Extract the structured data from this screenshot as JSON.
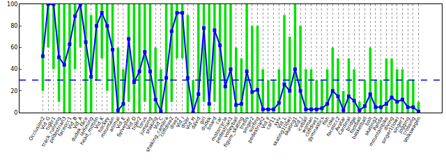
{
  "chart_data": {
    "type": "line",
    "categories": [
      "Occlusion2",
      "Vid_G",
      "tiger1",
      "track_running",
      "pedestrian3",
      "faceocc1",
      "Vid_B",
      "Vid_A",
      "dudek_face",
      "lemming",
      "head_motion",
      "Vid_K",
      "hockey",
      "mountain",
      "animal",
      "Vid_E",
      "Sylvester",
      "Vid_D",
      "tiger2",
      "torus",
      "jumping",
      "shaking",
      "Vid_C",
      "shaking_camera",
      "cliffdive2",
      "dive2",
      "Vid_I",
      "diver",
      "Vid_H",
      "david",
      "girl",
      "dudek",
      "board",
      "car",
      "motorcycle",
      "pedestrian1",
      "volleyball",
      "figure_skating",
      "trellis",
      "singer2",
      "surfing",
      "pedestrian2",
      "Vid_F",
      "car11",
      "sylv",
      "Vid_L",
      "skating1(low)",
      "skating1",
      "Vid_J",
      "iceball",
      "woman",
      "cliffdive1",
      "gymnastics",
      "fish",
      "coke",
      "faceocc2",
      "Avatar",
      "Cardinal",
      "bridge",
      "football",
      "basketball",
      "bolt",
      "skating2",
      "Panda",
      "mountainbike",
      "diving",
      "singer1(low)",
      "singer1",
      "jogging",
      "crossing",
      "Volkswagen"
    ],
    "series": [
      {
        "type": "range",
        "color": "#00e000",
        "low": [
          20,
          60,
          40,
          10,
          0,
          0,
          40,
          60,
          0,
          0,
          30,
          50,
          20,
          0,
          0,
          0,
          10,
          0,
          0,
          10,
          0,
          0,
          0,
          0,
          10,
          50,
          50,
          0,
          0,
          0,
          10,
          0,
          10,
          0,
          0,
          0,
          0,
          0,
          0,
          0,
          0,
          0,
          0,
          0,
          0,
          0,
          0,
          0,
          0,
          0,
          0,
          0,
          0,
          0,
          0,
          0,
          0,
          0,
          0,
          0,
          0,
          0,
          0,
          0,
          0,
          0,
          0,
          0,
          0,
          0,
          0
        ],
        "high": [
          100,
          100,
          100,
          100,
          100,
          100,
          100,
          100,
          100,
          90,
          100,
          100,
          100,
          100,
          60,
          40,
          100,
          100,
          100,
          100,
          100,
          60,
          40,
          100,
          100,
          100,
          100,
          90,
          30,
          100,
          100,
          100,
          100,
          100,
          100,
          100,
          60,
          50,
          100,
          80,
          80,
          40,
          30,
          30,
          40,
          90,
          70,
          100,
          80,
          40,
          40,
          30,
          30,
          40,
          60,
          50,
          20,
          50,
          40,
          10,
          30,
          60,
          30,
          30,
          50,
          50,
          40,
          40,
          30,
          30,
          10
        ]
      },
      {
        "type": "line",
        "color": "#0000ff",
        "marker": "square",
        "values": [
          52,
          100,
          100,
          51,
          44,
          63,
          89,
          100,
          65,
          33,
          80,
          92,
          80,
          58,
          2,
          8,
          68,
          28,
          38,
          56,
          38,
          12,
          1,
          32,
          75,
          92,
          92,
          32,
          0,
          17,
          78,
          8,
          76,
          62,
          24,
          40,
          7,
          8,
          38,
          19,
          21,
          3,
          3,
          3,
          9,
          26,
          20,
          40,
          20,
          3,
          3,
          3,
          4,
          8,
          20,
          15,
          2,
          15,
          11,
          2,
          6,
          17,
          5,
          5,
          8,
          14,
          10,
          12,
          5,
          5,
          1
        ]
      }
    ],
    "reference_line": {
      "value": 30,
      "color": "#0000ff",
      "line_style": "dashed"
    },
    "ylim": [
      0,
      100
    ],
    "yticks": [
      0,
      20,
      40,
      60,
      80,
      100
    ],
    "grid": true
  }
}
